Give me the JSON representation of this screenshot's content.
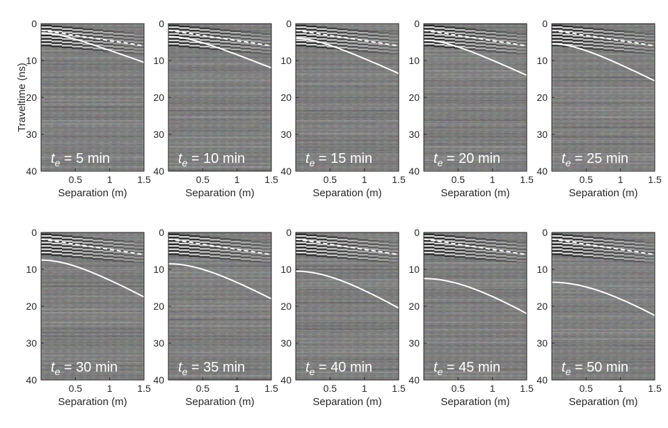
{
  "figure": {
    "ylabel": "Traveltime (ns)",
    "xlabel": "Separation (m)",
    "label_prefix": "t",
    "label_subscript": "e",
    "label_eq": " = ",
    "label_unit": " min"
  },
  "colors": {
    "background": "#808080",
    "pick_curve": "#ffffff",
    "label_text": "#ffffff",
    "axis": "#262626"
  },
  "chart_data": {
    "type": "radargram-grid",
    "title": "",
    "xlabel": "Separation (m)",
    "ylabel": "Traveltime (ns)",
    "xlim": [
      0,
      1.5
    ],
    "ylim": [
      0,
      40
    ],
    "y_reversed": true,
    "xticks": [
      0.5,
      1,
      1.5
    ],
    "xtick_labels": [
      "0.5",
      "1",
      "1.5"
    ],
    "yticks": [
      0,
      10,
      20,
      30,
      40
    ],
    "ytick_labels": [
      "0",
      "10",
      "20",
      "30",
      "40"
    ],
    "direct_wave_dashed": {
      "x": [
        0,
        1.5
      ],
      "t": [
        1.8,
        6.0
      ]
    },
    "panels": [
      {
        "te": "5",
        "reflection_t0": 2.5,
        "reflection_t_end": 10.5
      },
      {
        "te": "10",
        "reflection_t0": 3.5,
        "reflection_t_end": 12.0
      },
      {
        "te": "15",
        "reflection_t0": 4.0,
        "reflection_t_end": 13.5
      },
      {
        "te": "20",
        "reflection_t0": 4.5,
        "reflection_t_end": 14.0
      },
      {
        "te": "25",
        "reflection_t0": 5.5,
        "reflection_t_end": 15.5
      },
      {
        "te": "30",
        "reflection_t0": 7.5,
        "reflection_t_end": 17.5
      },
      {
        "te": "35",
        "reflection_t0": 8.5,
        "reflection_t_end": 18.0
      },
      {
        "te": "40",
        "reflection_t0": 10.5,
        "reflection_t_end": 20.5
      },
      {
        "te": "45",
        "reflection_t0": 12.5,
        "reflection_t_end": 22.0
      },
      {
        "te": "50",
        "reflection_t0": 13.5,
        "reflection_t_end": 22.5
      }
    ]
  }
}
